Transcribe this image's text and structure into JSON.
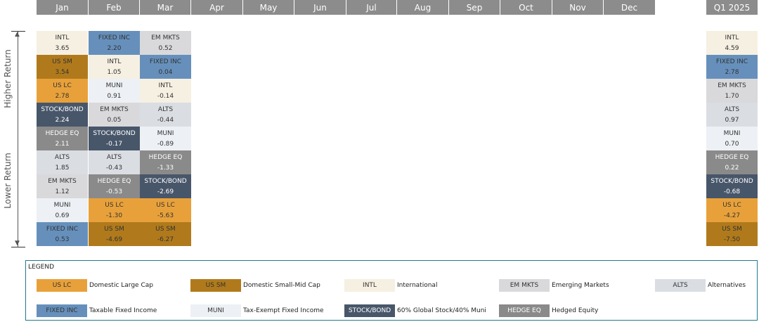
{
  "header": {
    "months": [
      "Jan",
      "Feb",
      "Mar",
      "Apr",
      "May",
      "Jun",
      "Jul",
      "Aug",
      "Sep",
      "Oct",
      "Nov",
      "Dec"
    ],
    "total_label": "Q1 2025"
  },
  "axis": {
    "higher": "Higher Return",
    "lower": "Lower Return"
  },
  "colors": {
    "US LC": "#e8a13a",
    "US SM": "#b07a1c",
    "INTL": "#f6f0e2",
    "EM MKTS": "#d9d9dc",
    "ALTS": "#dadde2",
    "FIXED INC": "#6690bb",
    "MUNI": "#edf0f4",
    "STOCK/BOND": "#48566a",
    "HEDGE EQ": "#8a8a8a"
  },
  "columns": [
    {
      "month": "Jan",
      "cells": [
        {
          "asset": "INTL",
          "value": "3.65"
        },
        {
          "asset": "US SM",
          "value": "3.54"
        },
        {
          "asset": "US LC",
          "value": "2.78"
        },
        {
          "asset": "STOCK/BOND",
          "value": "2.24"
        },
        {
          "asset": "HEDGE EQ",
          "value": "2.11"
        },
        {
          "asset": "ALTS",
          "value": "1.85"
        },
        {
          "asset": "EM MKTS",
          "value": "1.12"
        },
        {
          "asset": "MUNI",
          "value": "0.69"
        },
        {
          "asset": "FIXED INC",
          "value": "0.53"
        }
      ]
    },
    {
      "month": "Feb",
      "cells": [
        {
          "asset": "FIXED INC",
          "value": "2.20"
        },
        {
          "asset": "INTL",
          "value": "1.05"
        },
        {
          "asset": "MUNI",
          "value": "0.91"
        },
        {
          "asset": "EM MKTS",
          "value": "0.05"
        },
        {
          "asset": "STOCK/BOND",
          "value": "-0.17"
        },
        {
          "asset": "ALTS",
          "value": "-0.43"
        },
        {
          "asset": "HEDGE EQ",
          "value": "-0.53"
        },
        {
          "asset": "US LC",
          "value": "-1.30"
        },
        {
          "asset": "US SM",
          "value": "-4.69"
        }
      ]
    },
    {
      "month": "Mar",
      "cells": [
        {
          "asset": "EM MKTS",
          "value": "0.52"
        },
        {
          "asset": "FIXED INC",
          "value": "0.04"
        },
        {
          "asset": "INTL",
          "value": "-0.14"
        },
        {
          "asset": "ALTS",
          "value": "-0.44"
        },
        {
          "asset": "MUNI",
          "value": "-0.89"
        },
        {
          "asset": "HEDGE EQ",
          "value": "-1.33"
        },
        {
          "asset": "STOCK/BOND",
          "value": "-2.69"
        },
        {
          "asset": "US LC",
          "value": "-5.63"
        },
        {
          "asset": "US SM",
          "value": "-6.27"
        }
      ]
    },
    {
      "month": "Q1 2025",
      "cells": [
        {
          "asset": "INTL",
          "value": "4.59"
        },
        {
          "asset": "FIXED INC",
          "value": "2.78"
        },
        {
          "asset": "EM MKTS",
          "value": "1.70"
        },
        {
          "asset": "ALTS",
          "value": "0.97"
        },
        {
          "asset": "MUNI",
          "value": "0.70"
        },
        {
          "asset": "HEDGE EQ",
          "value": "0.22"
        },
        {
          "asset": "STOCK/BOND",
          "value": "-0.68"
        },
        {
          "asset": "US LC",
          "value": "-4.27"
        },
        {
          "asset": "US SM",
          "value": "-7.50"
        }
      ]
    }
  ],
  "legend": {
    "title": "LEGEND",
    "items": [
      {
        "asset": "US LC",
        "desc": "Domestic Large Cap"
      },
      {
        "asset": "US SM",
        "desc": "Domestic Small-Mid Cap"
      },
      {
        "asset": "INTL",
        "desc": "International"
      },
      {
        "asset": "EM MKTS",
        "desc": "Emerging Markets"
      },
      {
        "asset": "ALTS",
        "desc": "Alternatives"
      },
      {
        "asset": "FIXED INC",
        "desc": "Taxable Fixed Income"
      },
      {
        "asset": "MUNI",
        "desc": "Tax-Exempt Fixed Income"
      },
      {
        "asset": "STOCK/BOND",
        "desc": "60% Global Stock/40% Muni"
      },
      {
        "asset": "HEDGE EQ",
        "desc": "Hedged Equity"
      }
    ]
  }
}
